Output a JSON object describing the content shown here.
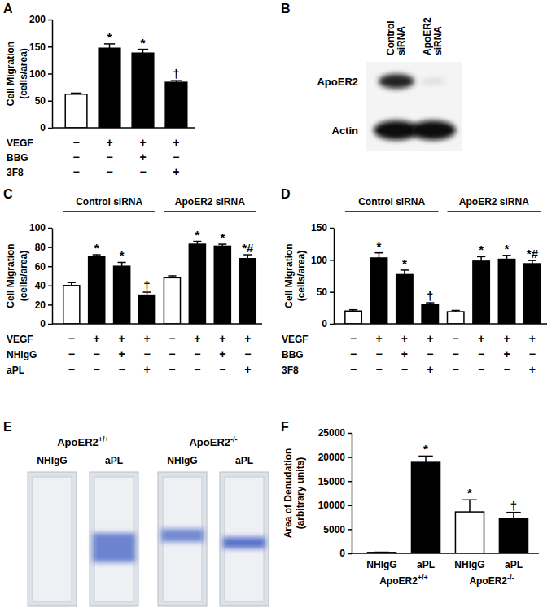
{
  "chart_data": [
    {
      "panel": "A",
      "type": "bar",
      "y_label": [
        "Cell Migration",
        "(cells/area)"
      ],
      "values": [
        62,
        147,
        138,
        84
      ],
      "errors": [
        2,
        8,
        7,
        3
      ],
      "colors": [
        "#ffffff",
        "#000000",
        "#000000",
        "#000000"
      ],
      "annotations": [
        null,
        "*",
        "*",
        "†"
      ],
      "conditions": [
        {
          "label": "VEGF",
          "marks": [
            "−",
            "+",
            "+",
            "+"
          ]
        },
        {
          "label": "BBG",
          "marks": [
            "−",
            "−",
            "+",
            "−"
          ]
        },
        {
          "label": "3F8",
          "marks": [
            "−",
            "−",
            "−",
            "+"
          ]
        }
      ],
      "ylim": [
        0,
        200
      ],
      "yticks": [
        0,
        50,
        100,
        150,
        200
      ]
    },
    {
      "panel": "C",
      "type": "bar",
      "y_label": [
        "Cell Migration",
        "(cells/area)"
      ],
      "values": [
        40,
        70,
        60,
        30,
        48,
        83,
        81,
        68
      ],
      "errors": [
        3,
        2,
        4,
        3,
        2,
        3,
        2,
        4
      ],
      "colors": [
        "#ffffff",
        "#000000",
        "#000000",
        "#000000",
        "#ffffff",
        "#000000",
        "#000000",
        "#000000"
      ],
      "annotations": [
        null,
        "*",
        "*",
        "†",
        null,
        "*",
        "*",
        "*#"
      ],
      "groups": [
        {
          "label": "Control siRNA",
          "size": 4
        },
        {
          "label": "ApoER2 siRNA",
          "size": 4
        }
      ],
      "conditions": [
        {
          "label": "VEGF",
          "marks": [
            "−",
            "+",
            "+",
            "+",
            "−",
            "+",
            "+",
            "+"
          ]
        },
        {
          "label": "NHIgG",
          "marks": [
            "−",
            "−",
            "+",
            "−",
            "−",
            "−",
            "+",
            "−"
          ]
        },
        {
          "label": "aPL",
          "marks": [
            "−",
            "−",
            "−",
            "+",
            "−",
            "−",
            "−",
            "+"
          ]
        }
      ],
      "ylim": [
        0,
        100
      ],
      "yticks": [
        0,
        20,
        40,
        60,
        80,
        100
      ]
    },
    {
      "panel": "D",
      "type": "bar",
      "y_label": [
        "Cell Migration",
        "(cells/area)"
      ],
      "values": [
        20,
        103,
        77,
        30,
        19,
        98,
        101,
        94
      ],
      "errors": [
        2,
        8,
        7,
        3,
        2,
        7,
        6,
        5
      ],
      "colors": [
        "#ffffff",
        "#000000",
        "#000000",
        "#000000",
        "#ffffff",
        "#000000",
        "#000000",
        "#000000"
      ],
      "annotations": [
        null,
        "*",
        "*",
        "†",
        null,
        "*",
        "*",
        "*#"
      ],
      "groups": [
        {
          "label": "Control siRNA",
          "size": 4
        },
        {
          "label": "ApoER2 siRNA",
          "size": 4
        }
      ],
      "conditions": [
        {
          "label": "VEGF",
          "marks": [
            "−",
            "+",
            "+",
            "+",
            "−",
            "+",
            "+",
            "+"
          ]
        },
        {
          "label": "BBG",
          "marks": [
            "−",
            "−",
            "+",
            "−",
            "−",
            "−",
            "+",
            "−"
          ]
        },
        {
          "label": "3F8",
          "marks": [
            "−",
            "−",
            "−",
            "+",
            "−",
            "−",
            "−",
            "+"
          ]
        }
      ],
      "ylim": [
        0,
        150
      ],
      "yticks": [
        0,
        50,
        100,
        150
      ]
    },
    {
      "panel": "F",
      "type": "bar",
      "y_label": [
        "Area of Denudation",
        "(arbitrary units)"
      ],
      "categories": [
        "NHIgG",
        "aPL",
        "NHIgG",
        "aPL"
      ],
      "values": [
        200,
        18900,
        8600,
        7300
      ],
      "errors": [
        50,
        1300,
        2500,
        1200
      ],
      "colors": [
        "#ffffff",
        "#000000",
        "#ffffff",
        "#000000"
      ],
      "annotations": [
        null,
        "*",
        "*",
        "†"
      ],
      "groups": [
        {
          "label": "ApoER2+/+",
          "size": 2
        },
        {
          "label": "ApoER2-/-",
          "size": 2
        }
      ],
      "ylim": [
        0,
        25000
      ],
      "yticks": [
        0,
        5000,
        10000,
        15000,
        20000,
        25000
      ]
    }
  ],
  "blot": {
    "panel": "B",
    "lanes": [
      "Control siRNA",
      "ApoER2 siRNA"
    ],
    "rows": [
      "ApoER2",
      "Actin"
    ]
  },
  "images": {
    "panel": "E",
    "groups": [
      {
        "label": "ApoER2+/+",
        "lanes": [
          "NHIgG",
          "aPL"
        ]
      },
      {
        "label": "ApoER2-/-",
        "lanes": [
          "NHIgG",
          "aPL"
        ]
      }
    ]
  }
}
